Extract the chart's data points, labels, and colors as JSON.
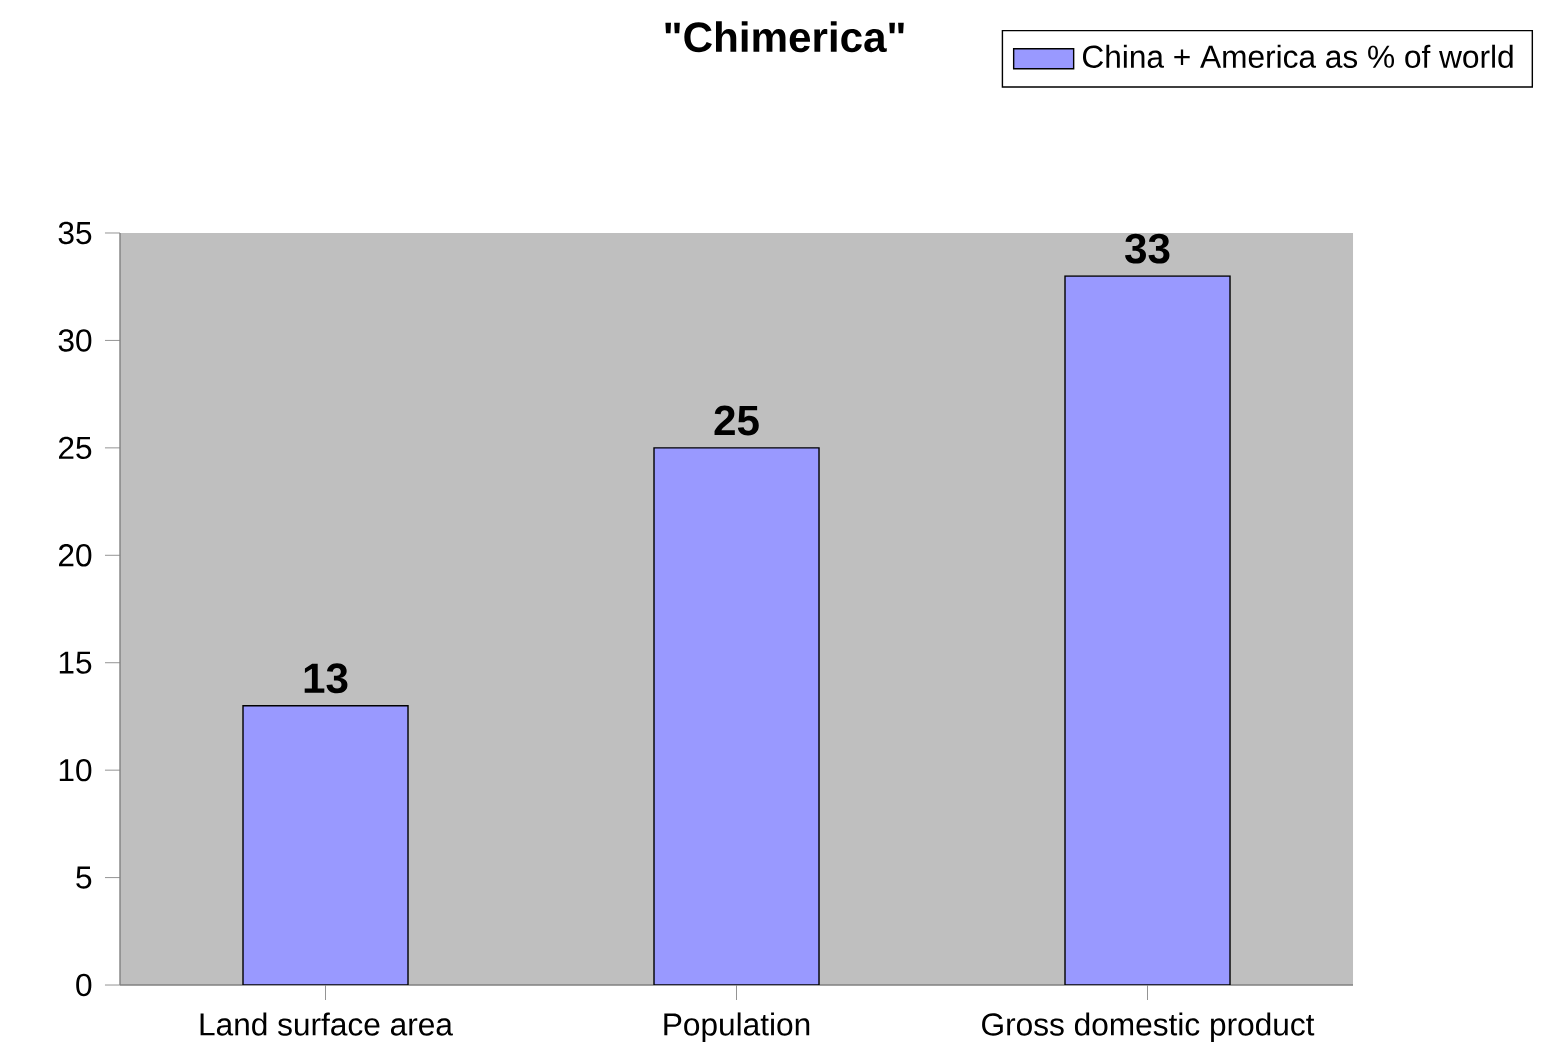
{
  "chart_data": {
    "type": "bar",
    "title": "\"Chimerica\"",
    "categories": [
      "Land surface area",
      "Population",
      "Gross domestic product"
    ],
    "series": [
      {
        "name": "China + America as % of world",
        "color": "#9999ff",
        "values": [
          13,
          25,
          33
        ]
      }
    ],
    "ylim": [
      0,
      35
    ],
    "yticks": [
      0,
      5,
      10,
      15,
      20,
      25,
      30,
      35
    ],
    "data_labels": true,
    "legend": "top right",
    "grid": false
  }
}
